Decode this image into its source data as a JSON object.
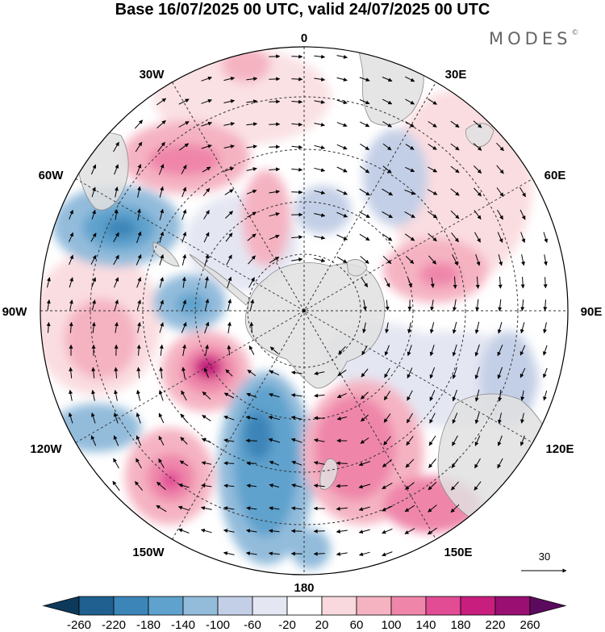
{
  "title": "Base 16/07/2025 00 UTC, valid 24/07/2025 00 UTC",
  "logo": "MODES",
  "logo_mark": "©",
  "longitude_labels": {
    "top": "0",
    "right_top": "30E",
    "right_upper": "60E",
    "right": "90E",
    "right_lower": "120E",
    "right_bottom": "150E",
    "bottom": "180",
    "left_bottom": "150W",
    "left_lower": "120W",
    "left": "90W",
    "left_upper": "60W",
    "left_top": "30W"
  },
  "vector_reference": "30",
  "colorbar": {
    "ticks": [
      "-260",
      "-220",
      "-180",
      "-140",
      "-100",
      "-60",
      "-20",
      "20",
      "60",
      "100",
      "140",
      "180",
      "220",
      "260"
    ],
    "colors": [
      "#0d3a5a",
      "#1f6090",
      "#3c85b8",
      "#5fa2cd",
      "#93bcdb",
      "#c3cfe6",
      "#e4e6f2",
      "#ffffff",
      "#f9d9dd",
      "#f5b3c2",
      "#ef86aa",
      "#e14c95",
      "#c81e7e",
      "#9a0f72",
      "#5c0a5e"
    ]
  }
}
